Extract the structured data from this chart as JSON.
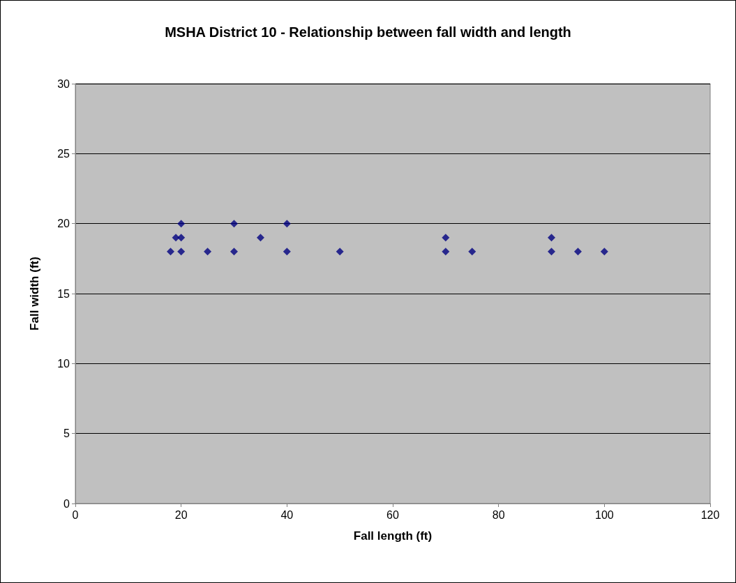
{
  "chart_data": {
    "type": "scatter",
    "title": "MSHA District 10 - Relationship between fall width and length",
    "xlabel": "Fall length (ft)",
    "ylabel": "Fall width (ft)",
    "x": [
      18,
      19,
      20,
      20,
      20,
      25,
      30,
      30,
      35,
      40,
      40,
      50,
      70,
      70,
      75,
      90,
      90,
      95,
      100
    ],
    "series": [
      {
        "color": "#000080",
        "values": [
          18,
          19,
          20,
          19,
          18,
          18,
          20,
          18,
          19,
          20,
          18,
          18,
          19,
          18,
          18,
          19,
          18,
          18,
          18
        ]
      }
    ],
    "xlim": [
      0,
      120
    ],
    "xticks": [
      0,
      20,
      40,
      60,
      80,
      100,
      120
    ],
    "ylim": [
      0,
      30
    ],
    "yticks": [
      0,
      5,
      10,
      15,
      20,
      25,
      30
    ],
    "grid": "y",
    "marker": "diamond"
  }
}
